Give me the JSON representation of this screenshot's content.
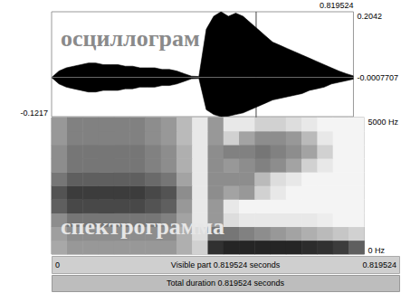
{
  "chart_data": [
    {
      "type": "line",
      "title": "осциллограм",
      "x": [
        0,
        0.02,
        0.04,
        0.06,
        0.08,
        0.1,
        0.12,
        0.14,
        0.16,
        0.18,
        0.2,
        0.22,
        0.24,
        0.26,
        0.28,
        0.3,
        0.32,
        0.34,
        0.36,
        0.38,
        0.4,
        0.42,
        0.44,
        0.46,
        0.48,
        0.5,
        0.52,
        0.54,
        0.56,
        0.58,
        0.6,
        0.62,
        0.64,
        0.66,
        0.68,
        0.7,
        0.72,
        0.74,
        0.76,
        0.78,
        0.8,
        0.819524
      ],
      "upper": [
        0,
        0.02,
        0.03,
        0.035,
        0.04,
        0.045,
        0.045,
        0.04,
        0.04,
        0.04,
        0.035,
        0.035,
        0.03,
        0.03,
        0.03,
        0.025,
        0.025,
        0.02,
        0.012,
        0.004,
        0.003,
        0.15,
        0.19,
        0.2042,
        0.19,
        0.2,
        0.19,
        0.17,
        0.15,
        0.13,
        0.11,
        0.1,
        0.09,
        0.08,
        0.07,
        0.06,
        0.05,
        0.04,
        0.03,
        0.02,
        0.012,
        0.005
      ],
      "lower": [
        0,
        -0.02,
        -0.03,
        -0.035,
        -0.04,
        -0.045,
        -0.045,
        -0.04,
        -0.04,
        -0.04,
        -0.035,
        -0.035,
        -0.03,
        -0.03,
        -0.03,
        -0.025,
        -0.025,
        -0.02,
        -0.012,
        -0.004,
        -0.003,
        -0.1,
        -0.115,
        -0.1217,
        -0.12,
        -0.115,
        -0.11,
        -0.1,
        -0.09,
        -0.08,
        -0.07,
        -0.065,
        -0.06,
        -0.055,
        -0.05,
        -0.04,
        -0.035,
        -0.03,
        -0.02,
        -0.015,
        -0.01,
        -0.005
      ],
      "color": "#000000",
      "xlim": [
        0,
        0.819524
      ],
      "xticks": [
        0.819524
      ],
      "ylim": [
        -0.1217,
        0.2042
      ],
      "yticks": [
        -0.1217,
        -0.0007707,
        0.2042
      ]
    },
    {
      "type": "heatmap",
      "title": "спектрограмма",
      "xlim": [
        0,
        0.819524
      ],
      "ylim": [
        0,
        5000
      ],
      "yticks": [
        {
          "value": 0,
          "label": "0 Hz"
        },
        {
          "value": 5000,
          "label": "5000 Hz"
        }
      ],
      "zlim": [
        0,
        1
      ],
      "cells": [
        [
          0.38,
          0.45,
          0.45,
          0.45,
          0.45,
          0.45,
          0.45,
          0.45,
          0.35,
          0.2,
          0.9,
          0.95,
          0.95,
          0.95,
          0.95,
          0.95,
          0.92,
          0.9,
          0.85,
          0.7
        ],
        [
          0.42,
          0.5,
          0.5,
          0.5,
          0.5,
          0.5,
          0.5,
          0.5,
          0.35,
          0.15,
          0.6,
          0.6,
          0.55,
          0.5,
          0.45,
          0.4,
          0.35,
          0.3,
          0.25,
          0.2
        ],
        [
          0.5,
          0.6,
          0.6,
          0.6,
          0.6,
          0.6,
          0.6,
          0.55,
          0.4,
          0.1,
          0.45,
          0.15,
          0.1,
          0.1,
          0.1,
          0.1,
          0.1,
          0.08,
          0.05,
          0.05
        ],
        [
          0.7,
          0.8,
          0.8,
          0.8,
          0.8,
          0.8,
          0.75,
          0.7,
          0.45,
          0.1,
          0.45,
          0.1,
          0.05,
          0.05,
          0.05,
          0.05,
          0.05,
          0.05,
          0.05,
          0.05
        ],
        [
          0.75,
          0.85,
          0.85,
          0.85,
          0.85,
          0.85,
          0.8,
          0.75,
          0.5,
          0.1,
          0.5,
          0.4,
          0.45,
          0.2,
          0.1,
          0.05,
          0.05,
          0.05,
          0.05,
          0.05
        ],
        [
          0.6,
          0.7,
          0.7,
          0.7,
          0.7,
          0.7,
          0.65,
          0.6,
          0.4,
          0.1,
          0.5,
          0.5,
          0.5,
          0.3,
          0.15,
          0.1,
          0.05,
          0.05,
          0.05,
          0.05
        ],
        [
          0.5,
          0.6,
          0.6,
          0.6,
          0.6,
          0.6,
          0.55,
          0.5,
          0.35,
          0.1,
          0.5,
          0.45,
          0.5,
          0.55,
          0.5,
          0.4,
          0.2,
          0.1,
          0.05,
          0.05
        ],
        [
          0.5,
          0.6,
          0.6,
          0.6,
          0.6,
          0.6,
          0.55,
          0.5,
          0.35,
          0.1,
          0.5,
          0.55,
          0.55,
          0.6,
          0.55,
          0.5,
          0.4,
          0.2,
          0.05,
          0.05
        ],
        [
          0.45,
          0.55,
          0.55,
          0.55,
          0.55,
          0.55,
          0.5,
          0.45,
          0.3,
          0.1,
          0.45,
          0.2,
          0.4,
          0.5,
          0.5,
          0.45,
          0.3,
          0.1,
          0.05,
          0.05
        ],
        [
          0.45,
          0.55,
          0.55,
          0.55,
          0.55,
          0.55,
          0.5,
          0.45,
          0.3,
          0.1,
          0.45,
          0.1,
          0.1,
          0.2,
          0.2,
          0.15,
          0.1,
          0.05,
          0.05,
          0.05
        ]
      ]
    }
  ],
  "cursor": 0.536,
  "time_bar": {
    "left": "0",
    "right": "0.819524",
    "visible": "Visible part 0.819524 seconds",
    "total": "Total duration 0.819524 seconds"
  }
}
